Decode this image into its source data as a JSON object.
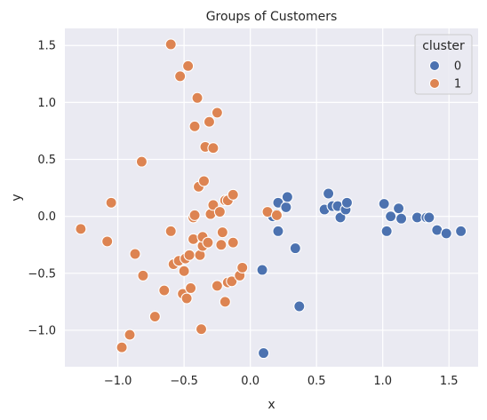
{
  "chart_data": {
    "type": "scatter",
    "title": "Groups of Customers",
    "xlabel": "x",
    "ylabel": "y",
    "xlim": [
      -1.4,
      1.72
    ],
    "ylim": [
      -1.32,
      1.65
    ],
    "xticks": [
      -1.0,
      -0.5,
      0.0,
      0.5,
      1.0,
      1.5
    ],
    "xtick_labels": [
      "−1.0",
      "−0.5",
      "0.0",
      "0.5",
      "1.0",
      "1.5"
    ],
    "yticks": [
      -1.0,
      -0.5,
      0.0,
      0.5,
      1.0,
      1.5
    ],
    "ytick_labels": [
      "−1.0",
      "−0.5",
      "0.0",
      "0.5",
      "1.0",
      "1.5"
    ],
    "grid": true,
    "background": "#eaeaf2",
    "legend": {
      "title": "cluster",
      "placement": "top-right"
    },
    "series": [
      {
        "name": "0",
        "color": "#4c72b0",
        "points": [
          [
            0.09,
            -0.47
          ],
          [
            0.1,
            -1.2
          ],
          [
            0.37,
            -0.79
          ],
          [
            0.34,
            -0.28
          ],
          [
            0.21,
            -0.13
          ],
          [
            0.17,
            0.0
          ],
          [
            0.2,
            0.02
          ],
          [
            0.21,
            0.12
          ],
          [
            0.27,
            0.08
          ],
          [
            0.28,
            0.17
          ],
          [
            0.56,
            0.06
          ],
          [
            0.59,
            0.2
          ],
          [
            0.62,
            0.09
          ],
          [
            0.66,
            0.09
          ],
          [
            0.68,
            -0.01
          ],
          [
            0.72,
            0.06
          ],
          [
            0.73,
            0.12
          ],
          [
            1.01,
            0.11
          ],
          [
            1.03,
            -0.13
          ],
          [
            1.06,
            0.0
          ],
          [
            1.12,
            0.07
          ],
          [
            1.14,
            -0.02
          ],
          [
            1.26,
            -0.01
          ],
          [
            1.33,
            -0.01
          ],
          [
            1.35,
            -0.01
          ],
          [
            1.41,
            -0.12
          ],
          [
            1.48,
            -0.15
          ],
          [
            1.59,
            -0.13
          ]
        ]
      },
      {
        "name": "1",
        "color": "#dd8452",
        "points": [
          [
            -1.28,
            -0.11
          ],
          [
            -1.08,
            -0.22
          ],
          [
            -1.05,
            0.12
          ],
          [
            -0.97,
            -1.15
          ],
          [
            -0.91,
            -1.04
          ],
          [
            -0.87,
            -0.33
          ],
          [
            -0.82,
            0.48
          ],
          [
            -0.81,
            -0.52
          ],
          [
            -0.72,
            -0.88
          ],
          [
            -0.65,
            -0.65
          ],
          [
            -0.6,
            1.51
          ],
          [
            -0.6,
            -0.13
          ],
          [
            -0.58,
            -0.42
          ],
          [
            -0.54,
            -0.39
          ],
          [
            -0.53,
            1.23
          ],
          [
            -0.51,
            -0.68
          ],
          [
            -0.5,
            -0.48
          ],
          [
            -0.49,
            -0.37
          ],
          [
            -0.48,
            -0.72
          ],
          [
            -0.47,
            1.32
          ],
          [
            -0.46,
            -0.34
          ],
          [
            -0.45,
            -0.63
          ],
          [
            -0.43,
            -0.2
          ],
          [
            -0.43,
            -0.01
          ],
          [
            -0.42,
            0.79
          ],
          [
            -0.42,
            0.01
          ],
          [
            -0.4,
            1.04
          ],
          [
            -0.39,
            0.26
          ],
          [
            -0.38,
            -0.34
          ],
          [
            -0.37,
            -0.99
          ],
          [
            -0.36,
            -0.26
          ],
          [
            -0.36,
            -0.18
          ],
          [
            -0.35,
            0.31
          ],
          [
            -0.34,
            0.61
          ],
          [
            -0.32,
            -0.23
          ],
          [
            -0.31,
            0.83
          ],
          [
            -0.3,
            0.02
          ],
          [
            -0.28,
            0.6
          ],
          [
            -0.28,
            0.1
          ],
          [
            -0.25,
            0.91
          ],
          [
            -0.25,
            -0.61
          ],
          [
            -0.23,
            0.04
          ],
          [
            -0.22,
            -0.25
          ],
          [
            -0.21,
            -0.14
          ],
          [
            -0.19,
            0.14
          ],
          [
            -0.19,
            -0.75
          ],
          [
            -0.17,
            0.14
          ],
          [
            -0.17,
            -0.58
          ],
          [
            -0.14,
            -0.57
          ],
          [
            -0.13,
            -0.23
          ],
          [
            -0.13,
            0.19
          ],
          [
            -0.08,
            -0.52
          ],
          [
            -0.06,
            -0.45
          ],
          [
            0.13,
            0.04
          ],
          [
            0.2,
            0.01
          ]
        ]
      }
    ]
  }
}
